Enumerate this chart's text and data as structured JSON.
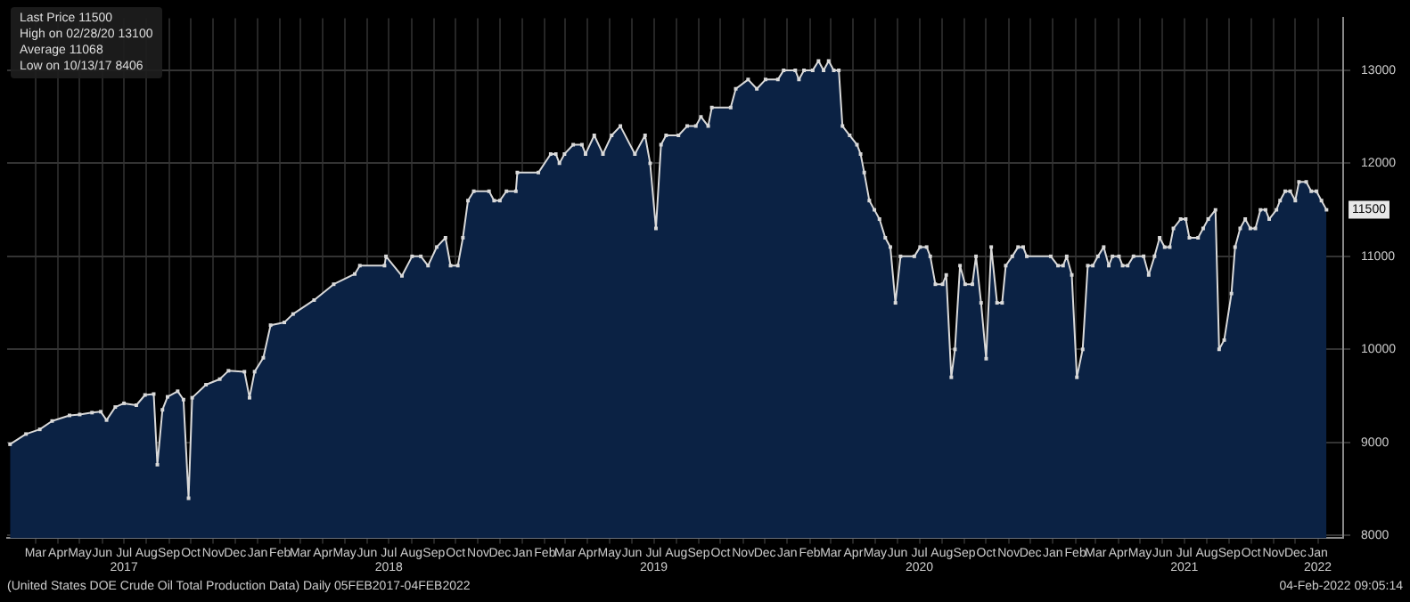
{
  "chart_data": {
    "type": "area",
    "marker": "square",
    "grid": true,
    "legend": false,
    "color": "#0b2244",
    "annotations": [
      "Last Price 11500",
      "High on 02/28/20 13100",
      "Average 11068",
      "Low on 10/13/17 8406",
      "(United States DOE Crude Oil Total Production Data)  Daily 05FEB2017-04FEB2022",
      "04-Feb-2022 09:05:14",
      {
        "text": "11500",
        "x": "2022-01-28",
        "y": 11500
      }
    ],
    "xlim": [
      "2017-02-05",
      "2022-02-20"
    ],
    "ylim": [
      7970,
      13560
    ],
    "yticks": [
      8000,
      9000,
      10000,
      11000,
      12000,
      13000
    ],
    "xticks": [
      {
        "value": "2017-03-16",
        "label": "Mar"
      },
      {
        "value": "2017-04-16",
        "label": "Apr"
      },
      {
        "value": "2017-05-16",
        "label": "May"
      },
      {
        "value": "2017-06-16",
        "label": "Jun"
      },
      {
        "value": "2017-07-16",
        "label": "Jul\n2017"
      },
      {
        "value": "2017-08-16",
        "label": "Aug"
      },
      {
        "value": "2017-09-16",
        "label": "Sep"
      },
      {
        "value": "2017-10-16",
        "label": "Oct"
      },
      {
        "value": "2017-11-16",
        "label": "Nov"
      },
      {
        "value": "2017-12-16",
        "label": "Dec"
      },
      {
        "value": "2018-01-16",
        "label": "Jan"
      },
      {
        "value": "2018-02-16",
        "label": "Feb"
      },
      {
        "value": "2018-03-16",
        "label": "Mar"
      },
      {
        "value": "2018-04-16",
        "label": "Apr"
      },
      {
        "value": "2018-05-16",
        "label": "May"
      },
      {
        "value": "2018-06-16",
        "label": "Jun"
      },
      {
        "value": "2018-07-16",
        "label": "Jul\n2018"
      },
      {
        "value": "2018-08-16",
        "label": "Aug"
      },
      {
        "value": "2018-09-16",
        "label": "Sep"
      },
      {
        "value": "2018-10-16",
        "label": "Oct"
      },
      {
        "value": "2018-11-16",
        "label": "Nov"
      },
      {
        "value": "2018-12-16",
        "label": "Dec"
      },
      {
        "value": "2019-01-16",
        "label": "Jan"
      },
      {
        "value": "2019-02-16",
        "label": "Feb"
      },
      {
        "value": "2019-03-16",
        "label": "Mar"
      },
      {
        "value": "2019-04-16",
        "label": "Apr"
      },
      {
        "value": "2019-05-16",
        "label": "May"
      },
      {
        "value": "2019-06-16",
        "label": "Jun"
      },
      {
        "value": "2019-07-16",
        "label": "Jul\n2019"
      },
      {
        "value": "2019-08-16",
        "label": "Aug"
      },
      {
        "value": "2019-09-16",
        "label": "Sep"
      },
      {
        "value": "2019-10-16",
        "label": "Oct"
      },
      {
        "value": "2019-11-16",
        "label": "Nov"
      },
      {
        "value": "2019-12-16",
        "label": "Dec"
      },
      {
        "value": "2020-01-16",
        "label": "Jan"
      },
      {
        "value": "2020-02-16",
        "label": "Feb"
      },
      {
        "value": "2020-03-16",
        "label": "Mar"
      },
      {
        "value": "2020-04-16",
        "label": "Apr"
      },
      {
        "value": "2020-05-16",
        "label": "May"
      },
      {
        "value": "2020-06-16",
        "label": "Jun"
      },
      {
        "value": "2020-07-16",
        "label": "Jul\n2020"
      },
      {
        "value": "2020-08-16",
        "label": "Aug"
      },
      {
        "value": "2020-09-16",
        "label": "Sep"
      },
      {
        "value": "2020-10-16",
        "label": "Oct"
      },
      {
        "value": "2020-11-16",
        "label": "Nov"
      },
      {
        "value": "2020-12-16",
        "label": "Dec"
      },
      {
        "value": "2021-01-16",
        "label": "Jan"
      },
      {
        "value": "2021-02-16",
        "label": "Feb"
      },
      {
        "value": "2021-03-16",
        "label": "Mar"
      },
      {
        "value": "2021-04-16",
        "label": "Apr"
      },
      {
        "value": "2021-05-16",
        "label": "May"
      },
      {
        "value": "2021-06-16",
        "label": "Jun"
      },
      {
        "value": "2021-07-16",
        "label": "Jul\n2021"
      },
      {
        "value": "2021-08-16",
        "label": "Aug"
      },
      {
        "value": "2021-09-16",
        "label": "Sep"
      },
      {
        "value": "2021-10-16",
        "label": "Oct"
      },
      {
        "value": "2021-11-16",
        "label": "Nov"
      },
      {
        "value": "2021-12-16",
        "label": "Dec"
      },
      {
        "value": "2022-01-16",
        "label": "Jan\n2022"
      }
    ],
    "x": [
      "2017-02-09",
      "2017-03-03",
      "2017-03-22",
      "2017-04-08",
      "2017-05-02",
      "2017-05-16",
      "2017-06-02",
      "2017-06-14",
      "2017-06-22",
      "2017-07-04",
      "2017-07-16",
      "2017-08-02",
      "2017-08-14",
      "2017-08-26",
      "2017-08-31",
      "2017-09-07",
      "2017-09-14",
      "2017-09-28",
      "2017-10-06",
      "2017-10-13",
      "2017-10-18",
      "2017-11-06",
      "2017-11-25",
      "2017-12-07",
      "2017-12-29",
      "2018-01-05",
      "2018-01-12",
      "2018-01-24",
      "2018-02-03",
      "2018-02-22",
      "2018-03-06",
      "2018-04-04",
      "2018-05-01",
      "2018-05-30",
      "2018-06-06",
      "2018-07-10",
      "2018-07-12",
      "2018-08-03",
      "2018-08-17",
      "2018-08-29",
      "2018-09-08",
      "2018-09-20",
      "2018-10-02",
      "2018-10-09",
      "2018-10-19",
      "2018-10-26",
      "2018-11-02",
      "2018-11-10",
      "2018-12-01",
      "2018-12-08",
      "2018-12-16",
      "2018-12-25",
      "2019-01-07",
      "2019-01-09",
      "2019-02-07",
      "2019-02-24",
      "2019-03-03",
      "2019-03-08",
      "2019-03-15",
      "2019-03-27",
      "2019-04-08",
      "2019-04-13",
      "2019-04-25",
      "2019-05-07",
      "2019-05-19",
      "2019-05-31",
      "2019-06-20",
      "2019-07-04",
      "2019-07-11",
      "2019-07-19",
      "2019-07-26",
      "2019-08-02",
      "2019-08-19",
      "2019-08-31",
      "2019-09-12",
      "2019-09-19",
      "2019-09-29",
      "2019-10-04",
      "2019-10-30",
      "2019-11-06",
      "2019-11-23",
      "2019-12-05",
      "2019-12-17",
      "2020-01-03",
      "2020-01-11",
      "2020-01-27",
      "2020-02-01",
      "2020-02-08",
      "2020-02-20",
      "2020-02-28",
      "2020-03-06",
      "2020-03-13",
      "2020-03-20",
      "2020-03-27",
      "2020-04-01",
      "2020-04-11",
      "2020-04-21",
      "2020-04-26",
      "2020-05-01",
      "2020-05-08",
      "2020-05-15",
      "2020-05-22",
      "2020-05-30",
      "2020-06-06",
      "2020-06-13",
      "2020-06-20",
      "2020-07-09",
      "2020-07-17",
      "2020-07-26",
      "2020-07-31",
      "2020-08-07",
      "2020-08-17",
      "2020-08-22",
      "2020-08-29",
      "2020-09-03",
      "2020-09-10",
      "2020-09-17",
      "2020-09-27",
      "2020-10-02",
      "2020-10-09",
      "2020-10-16",
      "2020-10-23",
      "2020-10-31",
      "2020-11-07",
      "2020-11-12",
      "2020-11-21",
      "2020-11-29",
      "2020-12-06",
      "2020-12-11",
      "2021-01-13",
      "2021-01-23",
      "2021-01-30",
      "2021-02-04",
      "2021-02-11",
      "2021-02-18",
      "2021-02-26",
      "2021-03-05",
      "2021-03-12",
      "2021-03-19",
      "2021-03-27",
      "2021-04-03",
      "2021-04-08",
      "2021-04-17",
      "2021-04-22",
      "2021-04-29",
      "2021-05-07",
      "2021-05-21",
      "2021-05-28",
      "2021-06-05",
      "2021-06-12",
      "2021-06-19",
      "2021-06-26",
      "2021-07-01",
      "2021-07-11",
      "2021-07-18",
      "2021-07-23",
      "2021-08-04",
      "2021-08-11",
      "2021-08-18",
      "2021-08-28",
      "2021-09-02",
      "2021-09-09",
      "2021-09-19",
      "2021-09-24",
      "2021-10-01",
      "2021-10-08",
      "2021-10-15",
      "2021-10-22",
      "2021-10-29",
      "2021-11-05",
      "2021-11-10",
      "2021-11-20",
      "2021-11-25",
      "2021-12-02",
      "2021-12-09",
      "2021-12-16",
      "2021-12-21",
      "2021-12-31",
      "2022-01-07",
      "2022-01-14",
      "2022-01-21",
      "2022-01-28"
    ],
    "values": [
      8980,
      9090,
      9140,
      9230,
      9290,
      9300,
      9320,
      9330,
      9240,
      9380,
      9420,
      9400,
      9510,
      9520,
      8760,
      9350,
      9490,
      9550,
      9460,
      8400,
      9480,
      9620,
      9680,
      9770,
      9760,
      9480,
      9760,
      9910,
      10260,
      10290,
      10380,
      10530,
      10700,
      10810,
      10900,
      10900,
      11000,
      10790,
      11000,
      11000,
      10900,
      11100,
      11200,
      10900,
      10900,
      11200,
      11600,
      11700,
      11700,
      11600,
      11600,
      11700,
      11700,
      11900,
      11900,
      12100,
      12100,
      12000,
      12100,
      12200,
      12200,
      12100,
      12300,
      12100,
      12300,
      12400,
      12100,
      12300,
      12000,
      11300,
      12200,
      12300,
      12300,
      12400,
      12400,
      12500,
      12400,
      12600,
      12600,
      12800,
      12900,
      12800,
      12900,
      12900,
      13000,
      13000,
      12900,
      13000,
      13000,
      13100,
      13000,
      13100,
      13000,
      13000,
      12400,
      12300,
      12200,
      12100,
      11900,
      11600,
      11500,
      11400,
      11200,
      11100,
      10500,
      11000,
      11000,
      11100,
      11100,
      11000,
      10700,
      10700,
      10800,
      9700,
      10000,
      10900,
      10700,
      10700,
      11000,
      10500,
      9900,
      11100,
      10500,
      10500,
      10900,
      11000,
      11100,
      11100,
      11000,
      11000,
      10900,
      10900,
      11000,
      10800,
      9700,
      10000,
      10900,
      10900,
      11000,
      11100,
      10900,
      11000,
      11000,
      10900,
      10900,
      11000,
      11000,
      10800,
      11000,
      11200,
      11100,
      11100,
      11300,
      11400,
      11400,
      11200,
      11200,
      11300,
      11400,
      11500,
      10000,
      10100,
      10600,
      11100,
      11300,
      11400,
      11300,
      11300,
      11500,
      11500,
      11400,
      11500,
      11600,
      11700,
      11700,
      11600,
      11800,
      11800,
      11700,
      11700,
      11600,
      11500
    ]
  }
}
